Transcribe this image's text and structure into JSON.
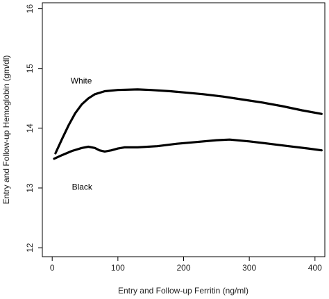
{
  "chart_data": {
    "type": "line",
    "title": "",
    "xlabel": "Entry and Follow-up Ferritin (ng/ml)",
    "ylabel": "Entry and Follow-up Hemoglobin (gm/dl)",
    "xlim": [
      -15,
      415
    ],
    "ylim": [
      11.85,
      16.1
    ],
    "x_ticks": [
      0,
      100,
      200,
      300,
      400
    ],
    "y_ticks": [
      12,
      13,
      14,
      15,
      16
    ],
    "grid": false,
    "legend": "none",
    "series": [
      {
        "name": "White",
        "color": "#000000",
        "label_at": [
          28,
          14.75
        ],
        "points": [
          [
            5,
            13.58
          ],
          [
            15,
            13.82
          ],
          [
            25,
            14.05
          ],
          [
            35,
            14.25
          ],
          [
            45,
            14.4
          ],
          [
            55,
            14.5
          ],
          [
            65,
            14.57
          ],
          [
            80,
            14.62
          ],
          [
            100,
            14.64
          ],
          [
            130,
            14.65
          ],
          [
            150,
            14.64
          ],
          [
            180,
            14.62
          ],
          [
            200,
            14.6
          ],
          [
            230,
            14.57
          ],
          [
            260,
            14.53
          ],
          [
            290,
            14.48
          ],
          [
            320,
            14.43
          ],
          [
            350,
            14.37
          ],
          [
            380,
            14.3
          ],
          [
            410,
            14.24
          ]
        ]
      },
      {
        "name": "Black",
        "color": "#000000",
        "label_at": [
          30,
          12.97
        ],
        "points": [
          [
            3,
            13.49
          ],
          [
            15,
            13.55
          ],
          [
            30,
            13.62
          ],
          [
            45,
            13.67
          ],
          [
            55,
            13.69
          ],
          [
            65,
            13.67
          ],
          [
            72,
            13.63
          ],
          [
            80,
            13.61
          ],
          [
            90,
            13.63
          ],
          [
            100,
            13.66
          ],
          [
            110,
            13.68
          ],
          [
            130,
            13.68
          ],
          [
            160,
            13.7
          ],
          [
            190,
            13.74
          ],
          [
            220,
            13.77
          ],
          [
            250,
            13.8
          ],
          [
            270,
            13.81
          ],
          [
            300,
            13.78
          ],
          [
            330,
            13.74
          ],
          [
            360,
            13.7
          ],
          [
            390,
            13.66
          ],
          [
            410,
            13.63
          ]
        ]
      }
    ]
  }
}
